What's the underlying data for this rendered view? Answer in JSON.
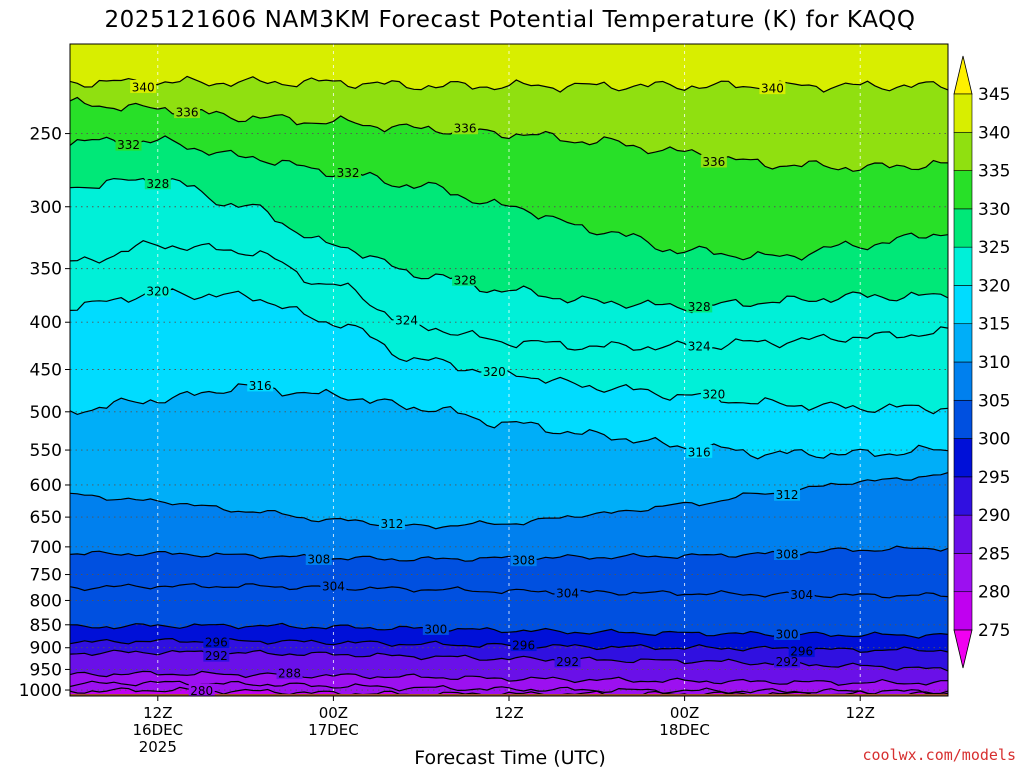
{
  "chart_data": {
    "type": "heatmap",
    "title": "2025121606 NAM3KM Forecast Potential Temperature (K) for KAQQ",
    "xlabel": "Forecast Time (UTC)",
    "credit": "coolwx.com/models",
    "x_range_hours": [
      0,
      60
    ],
    "y_axis": {
      "scale": "log",
      "range_hPa": [
        1015,
        200
      ],
      "ticks": [
        250,
        300,
        350,
        400,
        450,
        500,
        550,
        600,
        650,
        700,
        750,
        800,
        850,
        900,
        950,
        1000
      ]
    },
    "x_ticks": [
      {
        "hour": 6,
        "lines": [
          "12Z",
          "16DEC",
          "2025"
        ]
      },
      {
        "hour": 18,
        "lines": [
          "00Z",
          "17DEC"
        ]
      },
      {
        "hour": 30,
        "lines": [
          "12Z"
        ]
      },
      {
        "hour": 42,
        "lines": [
          "00Z",
          "18DEC"
        ]
      },
      {
        "hour": 54,
        "lines": [
          "12Z"
        ]
      }
    ],
    "colorbar": {
      "values": [
        275,
        280,
        285,
        290,
        295,
        300,
        305,
        310,
        315,
        320,
        325,
        330,
        335,
        340,
        345
      ],
      "colors": [
        "#f000f0",
        "#c000f0",
        "#9c10f0",
        "#6a10e8",
        "#3010e0",
        "#0010d8",
        "#0050e0",
        "#0080ee",
        "#00aef8",
        "#00dcff",
        "#00f0d8",
        "#00e878",
        "#28e028",
        "#90e010",
        "#d8ee00",
        "#fff000"
      ]
    },
    "contour_interval": 2,
    "anchor_hours": [
      0,
      6,
      12,
      18,
      24,
      30,
      36,
      42,
      48,
      54,
      60
    ],
    "isentropes": [
      {
        "theta": 280,
        "p": [
          1003,
          1000,
          1003,
          1008,
          1010,
          1010,
          1010,
          1010,
          1010,
          1010,
          1010
        ],
        "label_hour": 9
      },
      {
        "theta": 284,
        "p": [
          985,
          982,
          985,
          990,
          995,
          998,
          1000,
          1002,
          1003,
          1003,
          1004
        ]
      },
      {
        "theta": 288,
        "p": [
          962,
          960,
          962,
          965,
          968,
          972,
          975,
          978,
          980,
          982,
          982
        ],
        "label_hour": 15
      },
      {
        "theta": 292,
        "p": [
          912,
          910,
          912,
          915,
          920,
          925,
          928,
          930,
          935,
          942,
          950
        ],
        "label_hour": 10,
        "label2_hour": 34,
        "label3_hour": 49
      },
      {
        "theta": 296,
        "p": [
          888,
          885,
          885,
          888,
          892,
          895,
          898,
          900,
          902,
          905,
          905
        ],
        "label_hour": 10,
        "label2_hour": 31,
        "label3_hour": 50
      },
      {
        "theta": 300,
        "p": [
          855,
          852,
          852,
          855,
          858,
          862,
          866,
          868,
          870,
          872,
          872
        ],
        "label_hour": 25,
        "label2_hour": 49
      },
      {
        "theta": 304,
        "p": [
          775,
          772,
          772,
          775,
          778,
          782,
          784,
          786,
          788,
          790,
          790
        ],
        "label_hour": 18,
        "label2_hour": 34,
        "label3_hour": 50
      },
      {
        "theta": 308,
        "p": [
          712,
          712,
          715,
          720,
          722,
          720,
          718,
          716,
          712,
          705,
          702
        ],
        "label_hour": 17,
        "label2_hour": 31,
        "label3_hour": 49
      },
      {
        "theta": 312,
        "p": [
          615,
          625,
          640,
          655,
          665,
          660,
          645,
          630,
          612,
          595,
          585
        ],
        "label_hour": 22,
        "label2_hour": 49
      },
      {
        "theta": 316,
        "p": [
          498,
          485,
          470,
          480,
          495,
          515,
          530,
          545,
          555,
          555,
          550
        ],
        "label_hour": 13,
        "label2_hour": 43
      },
      {
        "theta": 320,
        "p": [
          385,
          372,
          375,
          400,
          440,
          455,
          470,
          480,
          490,
          495,
          495
        ],
        "label_hour": 6,
        "label2_hour": 29,
        "label3_hour": 44
      },
      {
        "theta": 324,
        "p": [
          345,
          330,
          335,
          365,
          405,
          420,
          425,
          425,
          420,
          415,
          410
        ],
        "label_hour": 23,
        "label2_hour": 43
      },
      {
        "theta": 328,
        "p": [
          285,
          280,
          300,
          330,
          355,
          370,
          380,
          385,
          380,
          375,
          375
        ],
        "label_hour": 6,
        "label2_hour": 27,
        "label3_hour": 43
      },
      {
        "theta": 332,
        "p": [
          255,
          255,
          265,
          275,
          285,
          300,
          318,
          335,
          340,
          330,
          320
        ],
        "label_hour": 4,
        "label2_hour": 19
      },
      {
        "theta": 336,
        "p": [
          232,
          235,
          240,
          243,
          247,
          250,
          255,
          262,
          270,
          272,
          270
        ],
        "label_hour": 8,
        "label2_hour": 27,
        "label3_hour": 44
      },
      {
        "theta": 340,
        "p": [
          220,
          220,
          220,
          220,
          222,
          222,
          222,
          222,
          222,
          222,
          222
        ],
        "label_hour": 5,
        "label2_hour": 48
      }
    ],
    "contour_labels_visible": [
      "340",
      "336",
      "332",
      "328",
      "320",
      "324",
      "316",
      "312",
      "308",
      "304",
      "300",
      "296",
      "292",
      "288",
      "280"
    ]
  }
}
